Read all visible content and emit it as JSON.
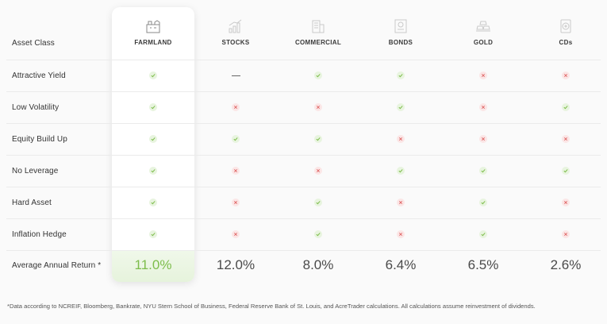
{
  "header": {
    "row_label": "Asset Class",
    "columns": [
      {
        "key": "farmland",
        "label": "FARMLAND",
        "icon": "farmland-icon"
      },
      {
        "key": "stocks",
        "label": "STOCKS",
        "icon": "stocks-icon"
      },
      {
        "key": "commercial",
        "label": "COMMERCIAL",
        "icon": "commercial-building-icon"
      },
      {
        "key": "bonds",
        "label": "BONDS",
        "icon": "bond-certificate-icon"
      },
      {
        "key": "gold",
        "label": "GOLD",
        "icon": "gold-bars-icon"
      },
      {
        "key": "cds",
        "label": "CDs",
        "icon": "cd-icon"
      }
    ]
  },
  "rows": [
    {
      "label": "Attractive Yield",
      "values": [
        "yes",
        "dash",
        "yes",
        "yes",
        "no",
        "no"
      ]
    },
    {
      "label": "Low Volatility",
      "values": [
        "yes",
        "no",
        "no",
        "yes",
        "no",
        "yes"
      ]
    },
    {
      "label": "Equity Build Up",
      "values": [
        "yes",
        "yes",
        "yes",
        "no",
        "no",
        "no"
      ]
    },
    {
      "label": "No Leverage",
      "values": [
        "yes",
        "no",
        "no",
        "yes",
        "yes",
        "yes"
      ]
    },
    {
      "label": "Hard Asset",
      "values": [
        "yes",
        "no",
        "yes",
        "no",
        "yes",
        "no"
      ]
    },
    {
      "label": "Inflation Hedge",
      "values": [
        "yes",
        "no",
        "yes",
        "no",
        "yes",
        "no"
      ]
    }
  ],
  "returns": {
    "label": "Average Annual Return *",
    "values": [
      "11.0%",
      "12.0%",
      "8.0%",
      "6.4%",
      "6.5%",
      "2.6%"
    ]
  },
  "footnote": "*Data according to NCREIF, Bloomberg, Bankrate, NYU Stern School of Business, Federal Reserve Bank of St. Louis, and AcreTrader calculations. All calculations assume reinvestment of dividends.",
  "colors": {
    "yes_bg": "#e8f4df",
    "yes_check": "#7dbd4b",
    "no_bg": "#fbe6e6",
    "no_x": "#e06b6b",
    "highlight_return": "#7dbd4b"
  }
}
